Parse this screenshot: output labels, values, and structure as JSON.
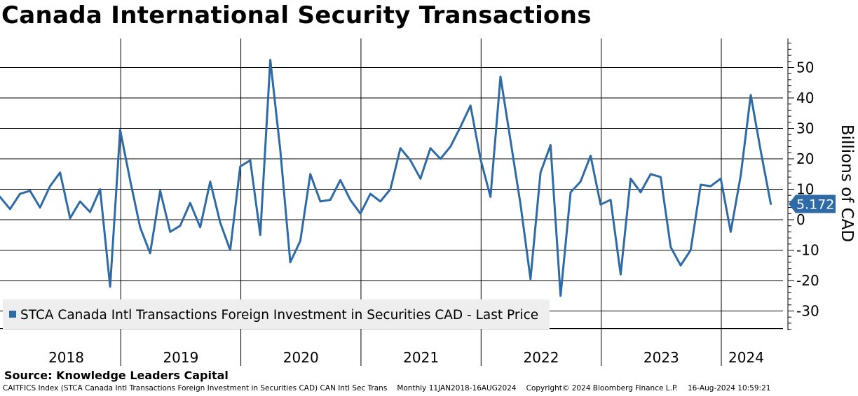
{
  "title": "Canada International Security Transactions",
  "source": "Source: Knowledge Leaders Capital",
  "footer": {
    "ticker": "CAITFICS Index (STCA Canada Intl Transactions Foreign Investment in Securities CAD) CAN Intl Sec Trans",
    "frequency": "Monthly 11JAN2018-16AUG2024",
    "copyright": "Copyright© 2024 Bloomberg Finance L.P.",
    "timestamp": "16-Aug-2024 10:59:21"
  },
  "colors": {
    "series": "#2e6aa5",
    "grid": "#000000",
    "legend_bg": "#eeeeee"
  },
  "chart_data": {
    "type": "line",
    "title": "Canada International Security Transactions",
    "ylabel": "Billions of CAD",
    "ylim": [
      -36,
      60
    ],
    "yticks": [
      -30,
      -20,
      -10,
      0,
      10,
      20,
      30,
      40,
      50
    ],
    "ytick_labels": [
      "-30",
      "-20",
      "-10",
      "0",
      "10",
      "20",
      "30",
      "40",
      "50"
    ],
    "year_labels": [
      "2018",
      "2019",
      "2020",
      "2021",
      "2022",
      "2023",
      "2024"
    ],
    "legend_label": "STCA Canada Intl Transactions Foreign Investment in Securities CAD - Last Price",
    "last_value": 5.172,
    "last_value_label": "5.172",
    "series": [
      {
        "name": "STCA Canada Intl Transactions Foreign Investment in Securities CAD - Last Price",
        "start": "2018-01",
        "frequency": "monthly",
        "values": [
          7.5,
          3.5,
          8.5,
          9.5,
          4,
          11,
          15.5,
          0.5,
          6,
          2.5,
          10,
          -22,
          29.5,
          13,
          -2.5,
          -11,
          9.5,
          -4,
          -2,
          5.5,
          -2.5,
          12.5,
          -1,
          -10,
          17.5,
          19.5,
          -5,
          52.5,
          23,
          -14,
          -7,
          15,
          6,
          6.5,
          13,
          6.5,
          2,
          8.5,
          6,
          10,
          23.5,
          19.5,
          13.5,
          23.5,
          20,
          24,
          30.5,
          37.5,
          20,
          7.5,
          47,
          26,
          5,
          -19.5,
          15.5,
          24.5,
          -25,
          9,
          12.5,
          21,
          5,
          6.5,
          -18,
          13.5,
          9,
          15,
          14,
          -9,
          -15,
          -10,
          11.5,
          11,
          13.5,
          -4,
          14.5,
          41,
          22.5,
          5.172
        ]
      }
    ]
  }
}
